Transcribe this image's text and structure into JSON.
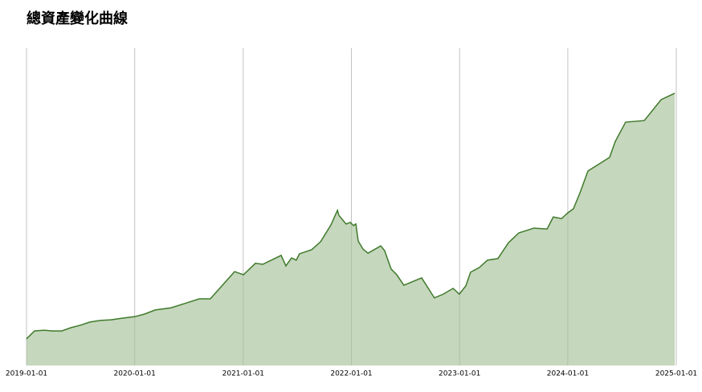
{
  "chart_data": {
    "type": "area",
    "title": "總資產變化曲線",
    "x": [
      "2019-01-01",
      "2019-01-28",
      "2019-03-02",
      "2019-03-29",
      "2019-04-30",
      "2019-05-30",
      "2019-07-02",
      "2019-08-03",
      "2019-09-07",
      "2019-10-13",
      "2019-11-19",
      "2020-01-02",
      "2020-02-03",
      "2020-03-10",
      "2020-05-03",
      "2020-06-23",
      "2020-08-06",
      "2020-09-12",
      "2020-12-03",
      "2021-01-02",
      "2021-02-11",
      "2021-03-08",
      "2021-05-09",
      "2021-05-25",
      "2021-06-13",
      "2021-06-29",
      "2021-07-10",
      "2021-08-20",
      "2021-09-19",
      "2021-10-24",
      "2021-11-15",
      "2021-11-20",
      "2021-12-14",
      "2021-12-28",
      "2022-01-08",
      "2022-01-16",
      "2022-01-24",
      "2022-02-09",
      "2022-02-26",
      "2022-04-10",
      "2022-04-23",
      "2022-05-15",
      "2022-06-03",
      "2022-06-27",
      "2022-08-26",
      "2022-10-08",
      "2022-11-07",
      "2022-12-10",
      "2022-12-31",
      "2023-01-22",
      "2023-02-07",
      "2023-03-09",
      "2023-04-05",
      "2023-05-10",
      "2023-06-15",
      "2023-07-20",
      "2023-09-09",
      "2023-10-23",
      "2023-11-13",
      "2023-12-11",
      "2024-01-01",
      "2024-01-20",
      "2024-02-11",
      "2024-03-09",
      "2024-05-21",
      "2024-06-09",
      "2024-07-14",
      "2024-09-15",
      "2024-11-11",
      "2024-12-27"
    ],
    "values": [
      8.4,
      10.9,
      11.1,
      10.9,
      10.9,
      11.9,
      12.7,
      13.7,
      14.2,
      14.4,
      14.9,
      15.4,
      16.2,
      17.5,
      18.2,
      19.7,
      21.0,
      21.0,
      29.6,
      28.6,
      32.2,
      31.9,
      34.7,
      31.4,
      33.9,
      33.2,
      35.2,
      36.5,
      39.0,
      44.3,
      48.9,
      47.3,
      44.6,
      45.1,
      44.1,
      44.6,
      39.2,
      36.7,
      35.4,
      37.7,
      36.2,
      30.4,
      28.6,
      25.3,
      27.6,
      21.3,
      22.5,
      24.3,
      22.5,
      25.1,
      29.4,
      30.9,
      33.2,
      33.7,
      38.7,
      41.8,
      43.3,
      43.0,
      46.8,
      46.3,
      48.1,
      49.4,
      54.4,
      61.3,
      65.6,
      70.6,
      76.7,
      77.2,
      83.8,
      85.8
    ],
    "color": "#3f7a2b",
    "fill": "#c5d7bc",
    "xlim": [
      "2019-01-01",
      "2025-01-01"
    ],
    "xticks": [
      "2019-01-01",
      "2020-01-01",
      "2021-01-01",
      "2022-01-01",
      "2023-01-01",
      "2024-01-01",
      "2025-01-01"
    ],
    "ylim": [
      0,
      100
    ],
    "grid": true
  }
}
